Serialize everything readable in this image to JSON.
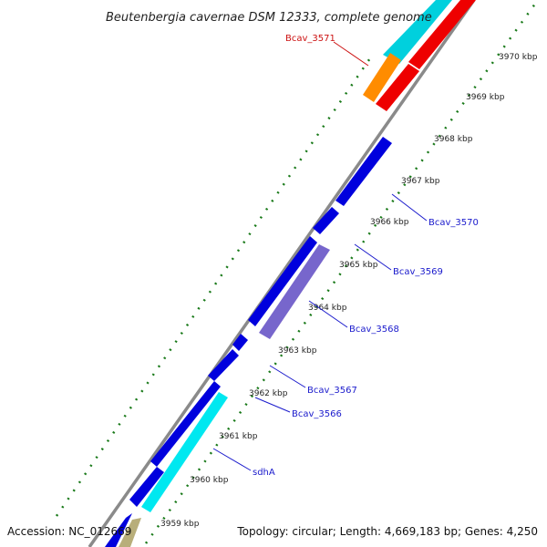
{
  "title": "Beutenbergia cavernae DSM 12333, complete genome",
  "footer": {
    "accession": "Accession: NC_012669",
    "summary": "Topology: circular; Length: 4,669,183 bp; Genes: 4,250"
  },
  "ticks": [
    "3959 kbp",
    "3960 kbp",
    "3961 kbp",
    "3962 kbp",
    "3963 kbp",
    "3964 kbp",
    "3965 kbp",
    "3966 kbp",
    "3967 kbp",
    "3968 kbp",
    "3969 kbp",
    "3970 kbp"
  ],
  "gene_labels": {
    "bcav_3571": "Bcav_3571",
    "bcav_3570": "Bcav_3570",
    "bcav_3569": "Bcav_3569",
    "bcav_3568": "Bcav_3568",
    "bcav_3567": "Bcav_3567",
    "bcav_3566": "Bcav_3566",
    "sdha": "sdhA"
  },
  "colors": {
    "backbone": "#8a8a8a",
    "gene_blue": "#0000dd",
    "gene_cyan": "#00e8f0",
    "gene_red": "#ee0000",
    "gene_orange": "#ff8c00",
    "gene_violet": "#7766cc",
    "gene_tan": "#b8ae7a",
    "dots_green": "#1a7a1a",
    "label_blue": "#1a1acc",
    "label_red": "#cc1111"
  }
}
